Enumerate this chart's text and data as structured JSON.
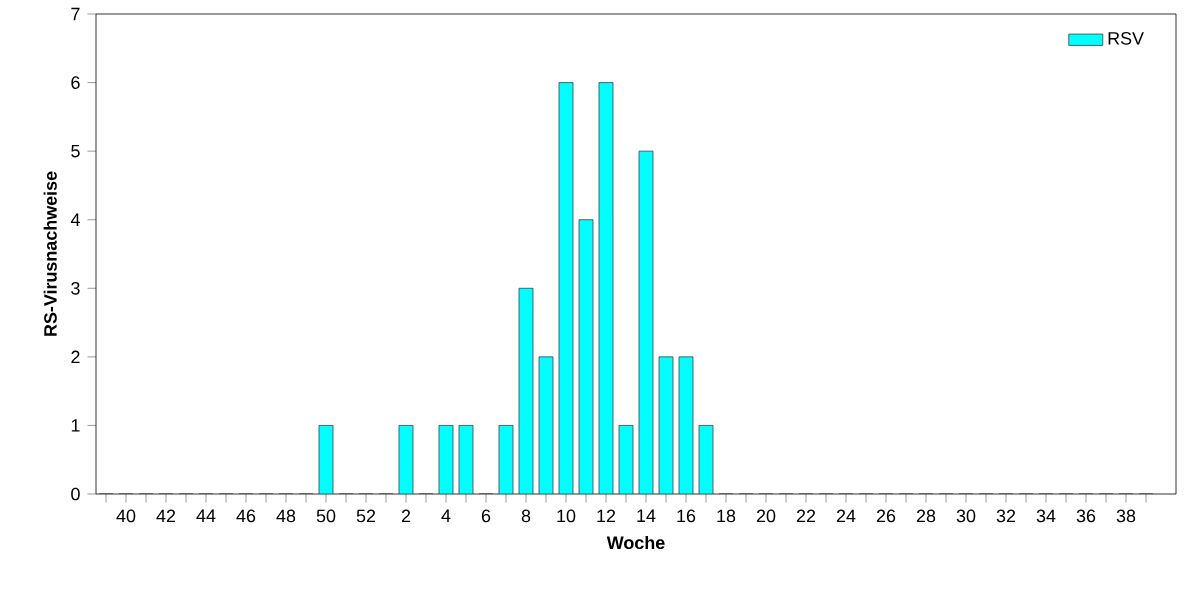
{
  "chart_data": {
    "type": "bar",
    "xlabel": "Woche",
    "ylabel": "RS-Virusnachweise",
    "categories": [
      null,
      "40",
      null,
      "42",
      null,
      "44",
      null,
      "46",
      null,
      "48",
      null,
      "50",
      null,
      "52",
      null,
      "2",
      null,
      "4",
      null,
      "6",
      null,
      "8",
      null,
      "10",
      null,
      "12",
      null,
      "14",
      null,
      "16",
      null,
      "18",
      null,
      "20",
      null,
      "22",
      null,
      "24",
      null,
      "26",
      null,
      "28",
      null,
      "30",
      null,
      "32",
      null,
      "34",
      null,
      "36",
      null,
      "38",
      null
    ],
    "series": [
      {
        "name": "RSV",
        "color": "#00ffff",
        "values": [
          0,
          0,
          0,
          0,
          0,
          0,
          0,
          0,
          0,
          0,
          0,
          1,
          0,
          0,
          0,
          1,
          0,
          1,
          1,
          0,
          1,
          3,
          2,
          6,
          4,
          6,
          1,
          5,
          2,
          2,
          1,
          0,
          0,
          0,
          0,
          0,
          0,
          0,
          0,
          0,
          0,
          0,
          0,
          0,
          0,
          0,
          0,
          0,
          0,
          0,
          0,
          0,
          0
        ]
      }
    ],
    "ylim": [
      0,
      7
    ],
    "yticks": [
      0,
      1,
      2,
      3,
      4,
      5,
      6,
      7
    ],
    "legend": "top right",
    "grid": false
  }
}
